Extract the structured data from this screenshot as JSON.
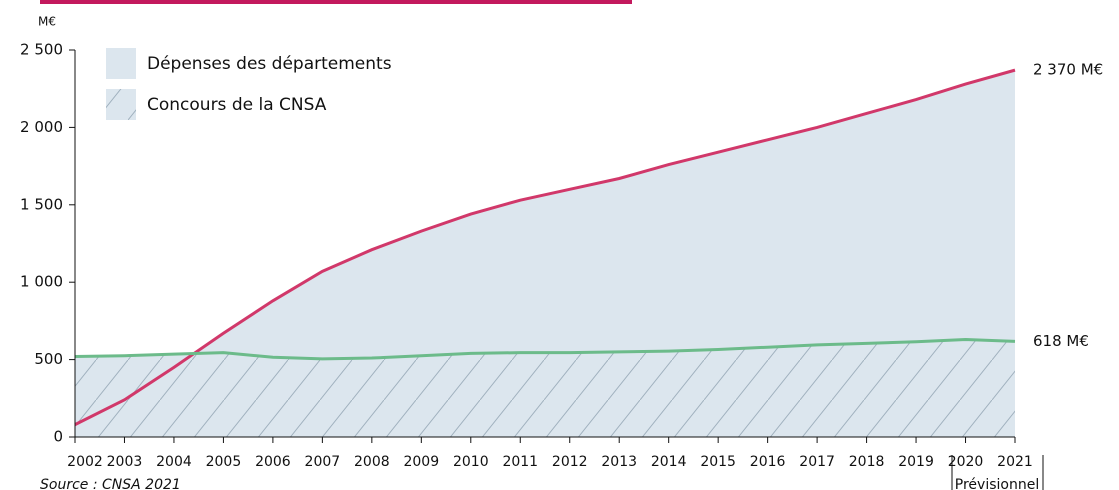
{
  "chart_data": {
    "type": "area",
    "unit_label": "M€",
    "source": "Source : CNSA 2021",
    "forecast_label": "Prévisionnel",
    "categories": [
      "2002",
      "2003",
      "2004",
      "2005",
      "2006",
      "2007",
      "2008",
      "2009",
      "2010",
      "2011",
      "2012",
      "2013",
      "2014",
      "2015",
      "2016",
      "2017",
      "2018",
      "2019",
      "2020",
      "2021"
    ],
    "series": [
      {
        "name": "Dépenses des départements",
        "color": "#d1386a",
        "fill": "#dce6ee",
        "end_label": "2 370 M€",
        "values": [
          80,
          240,
          450,
          670,
          880,
          1070,
          1210,
          1330,
          1440,
          1530,
          1600,
          1670,
          1760,
          1840,
          1920,
          2000,
          2090,
          2180,
          2280,
          2370
        ]
      },
      {
        "name": "Concours de la CNSA",
        "color": "#6cbb8a",
        "fill": "#dce6ee",
        "hatch": true,
        "end_label": "618 M€",
        "values": [
          520,
          525,
          535,
          545,
          515,
          505,
          510,
          525,
          540,
          545,
          545,
          550,
          555,
          565,
          580,
          595,
          605,
          615,
          630,
          618
        ]
      }
    ],
    "ylim": [
      0,
      2500
    ],
    "yticks": [
      0,
      500,
      {
        "value": 1000,
        "label": "1 000"
      },
      {
        "value": 1500,
        "label": "1 500"
      },
      {
        "value": 2000,
        "label": "2 000"
      },
      {
        "value": 2500,
        "label": "2 500"
      }
    ]
  }
}
